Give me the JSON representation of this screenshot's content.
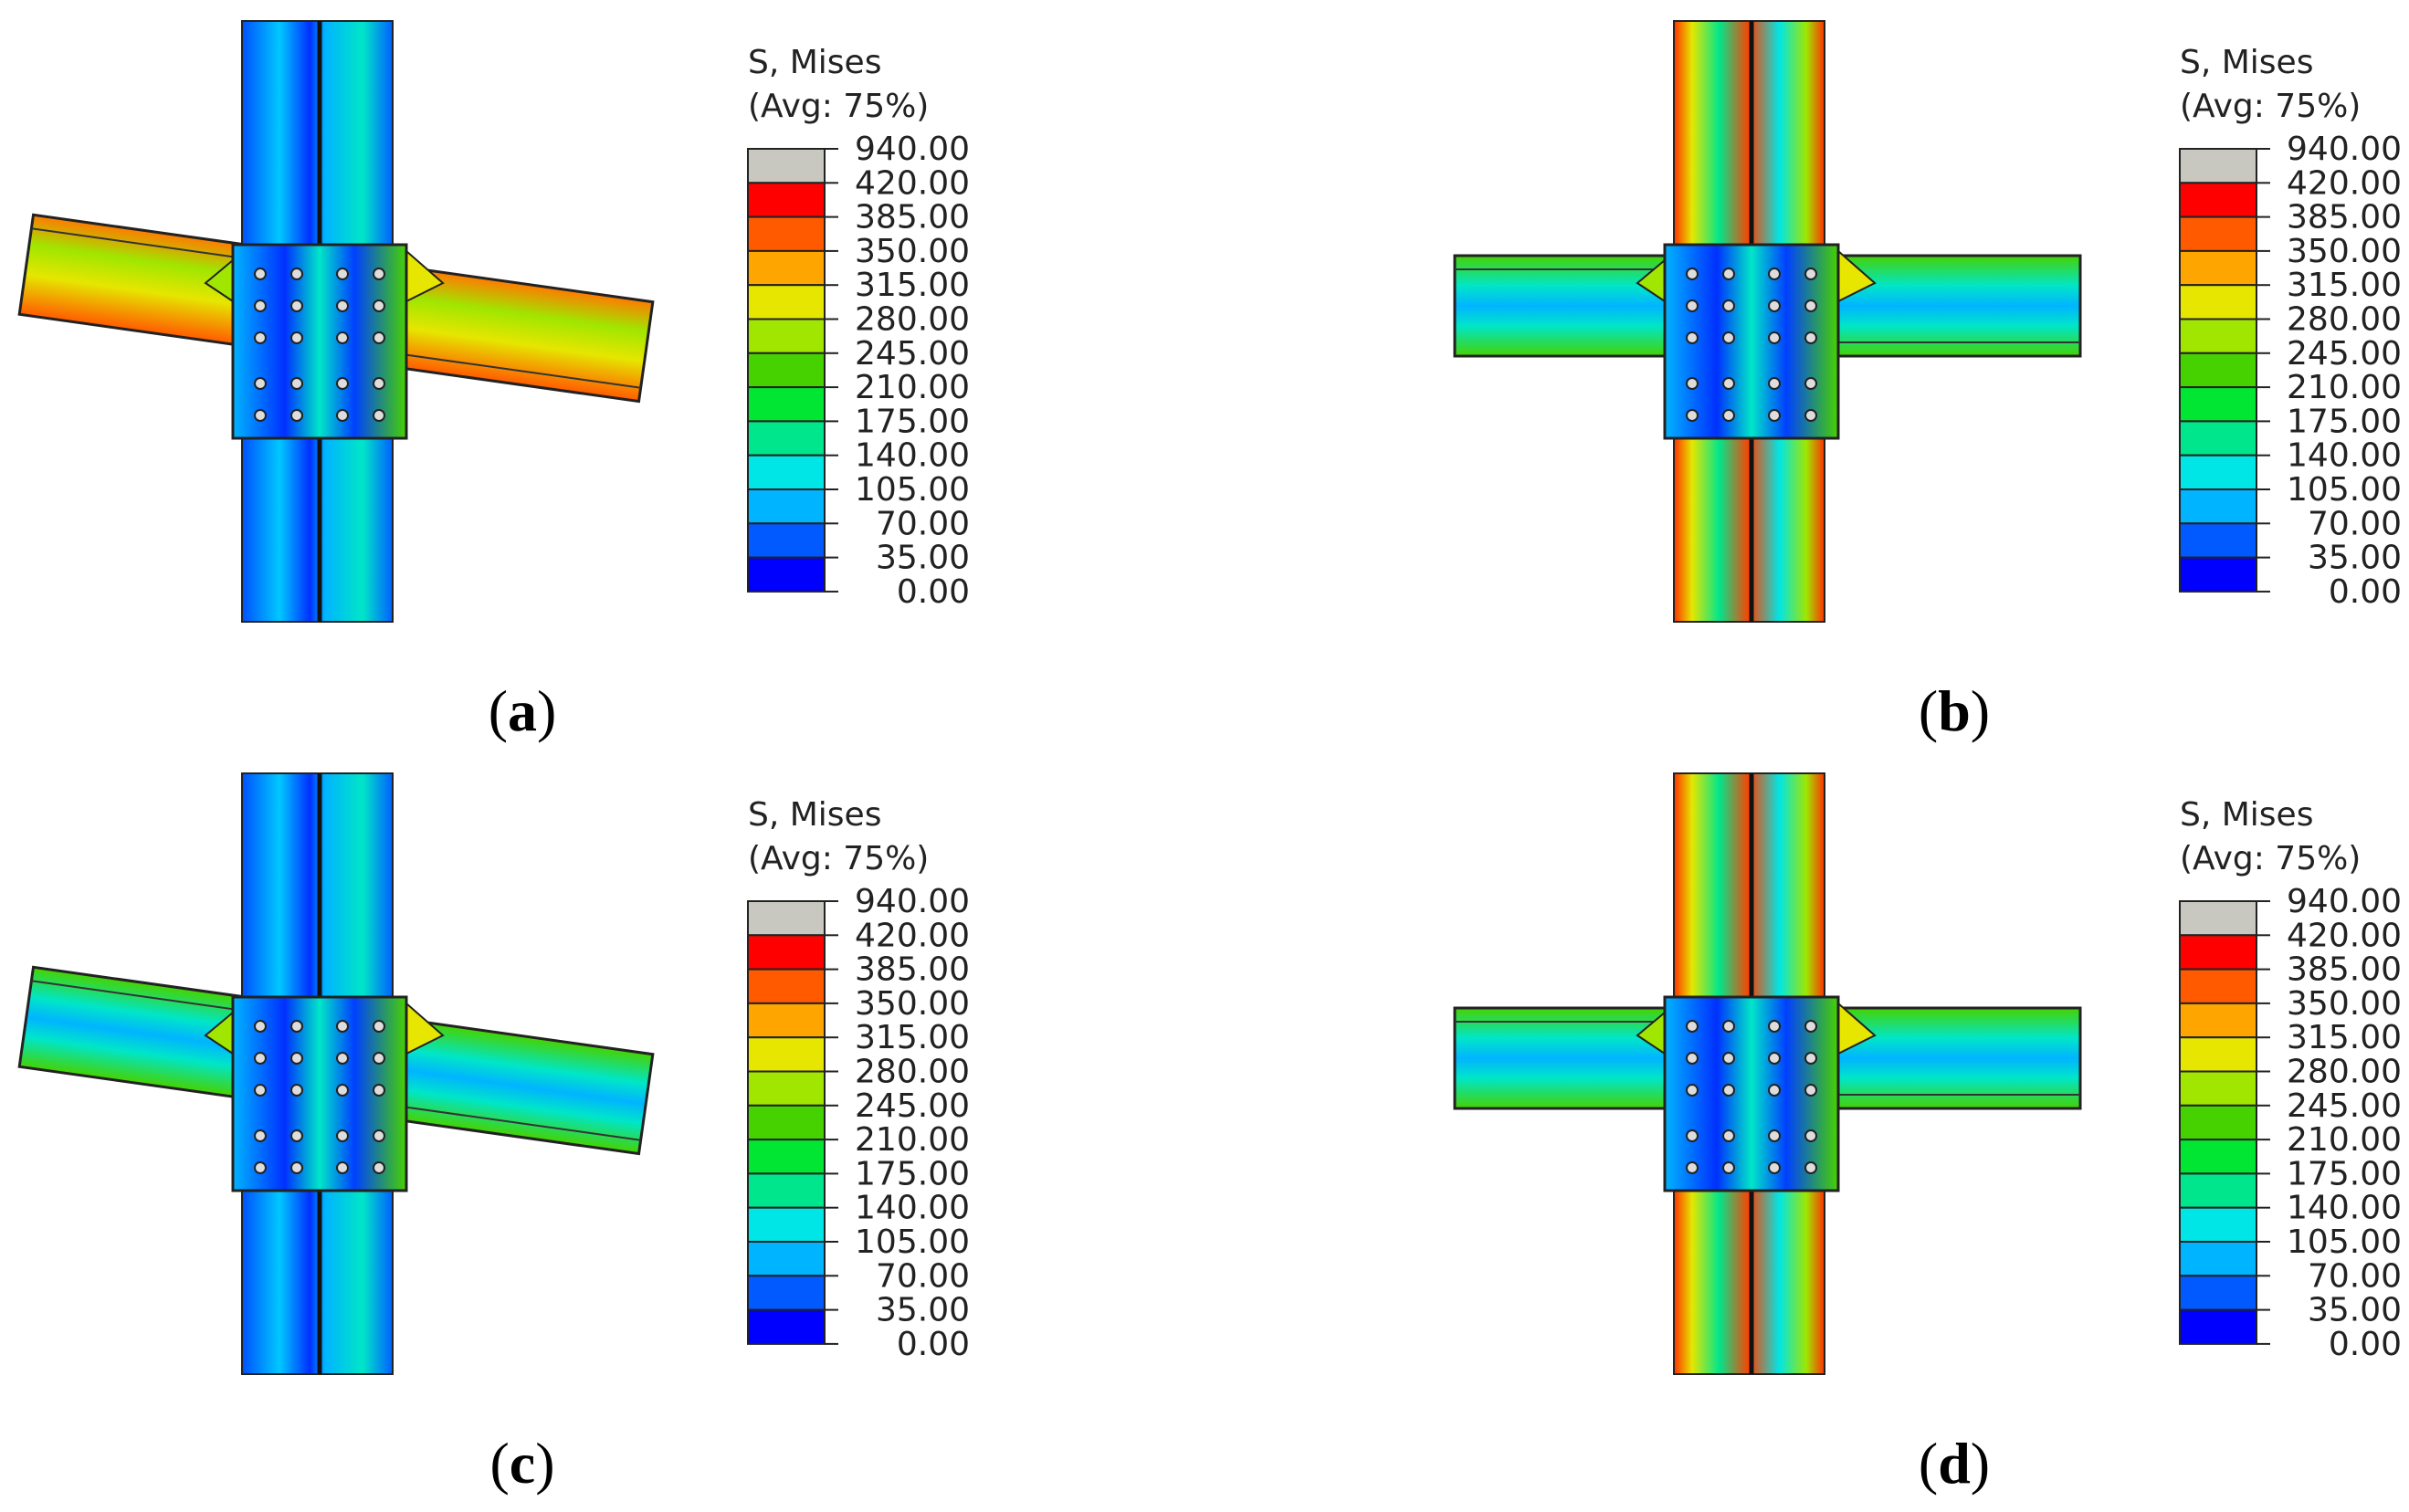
{
  "panels": [
    {
      "caption": [
        "(",
        "a",
        ")"
      ],
      "legend": {
        "title": "S, Mises",
        "subtitle": "(Avg: 75%)",
        "labels": [
          "940.00",
          "420.00",
          "385.00",
          "350.00",
          "315.00",
          "280.00",
          "245.00",
          "210.00",
          "175.00",
          "140.00",
          "105.00",
          "70.00",
          "35.00",
          "0.00"
        ]
      }
    },
    {
      "caption": [
        "(",
        "b",
        ")"
      ],
      "legend": {
        "title": "S, Mises",
        "subtitle": "(Avg: 75%)",
        "labels": [
          "940.00",
          "420.00",
          "385.00",
          "350.00",
          "315.00",
          "280.00",
          "245.00",
          "210.00",
          "175.00",
          "140.00",
          "105.00",
          "70.00",
          "35.00",
          "0.00"
        ]
      }
    },
    {
      "caption": [
        "(",
        "c",
        ")"
      ],
      "legend": {
        "title": "S, Mises",
        "subtitle": "(Avg: 75%)",
        "labels": [
          "940.00",
          "420.00",
          "385.00",
          "350.00",
          "315.00",
          "280.00",
          "245.00",
          "210.00",
          "175.00",
          "140.00",
          "105.00",
          "70.00",
          "35.00",
          "0.00"
        ]
      }
    },
    {
      "caption": [
        "(",
        "d",
        ")"
      ],
      "legend": {
        "title": "S, Mises",
        "subtitle": "(Avg: 75%)",
        "labels": [
          "940.00",
          "420.00",
          "385.00",
          "350.00",
          "315.00",
          "280.00",
          "245.00",
          "210.00",
          "175.00",
          "140.00",
          "105.00",
          "70.00",
          "35.00",
          "0.00"
        ]
      }
    }
  ]
}
